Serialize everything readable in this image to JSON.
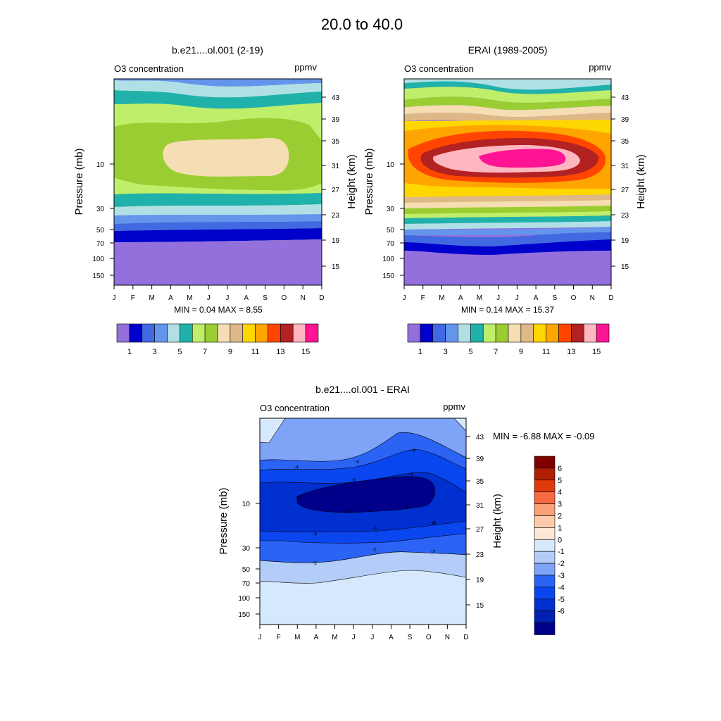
{
  "page_title": "20.0 to  40.0",
  "colors": {
    "conc_palette": [
      "#9370DB",
      "#0000CD",
      "#4169E1",
      "#6495ED",
      "#B0E0E6",
      "#20B2AA",
      "#BFEF6A",
      "#9ACD32",
      "#F5DEB3",
      "#DEB887",
      "#FFD700",
      "#FFA500",
      "#FF4500",
      "#B22222",
      "#FFB6C1",
      "#FF1493"
    ],
    "diff_palette": [
      "#00008B",
      "#0020B0",
      "#0030D0",
      "#0A46F0",
      "#2B63F5",
      "#7FA3F7",
      "#B3CDF8",
      "#D6E9FC",
      "#FCE6D6",
      "#FDCBAA",
      "#FBA178",
      "#F56A40",
      "#E03B0A",
      "#B02000",
      "#800000"
    ]
  },
  "chart_data": [
    {
      "id": "model",
      "type": "contour",
      "title": "b.e21....ol.001 (2-19)",
      "subtitle_left": "O3 concentration",
      "subtitle_right": "ppmv",
      "ylabel": "Pressure (mb)",
      "y2label": "Height (km)",
      "x": [
        "J",
        "F",
        "M",
        "A",
        "M",
        "J",
        "J",
        "A",
        "S",
        "O",
        "N",
        "D"
      ],
      "pressure_ticks": [
        "10",
        "30",
        "50",
        "70",
        "100",
        "150"
      ],
      "height_ticks": [
        "43",
        "39",
        "35",
        "31",
        "27",
        "23",
        "19",
        "15"
      ],
      "min_max": "MIN =   0.04  MAX =   8.55",
      "levels": [
        1,
        2,
        3,
        4,
        5,
        6,
        7,
        8,
        9
      ],
      "colorbar_labels": [
        "1",
        "3",
        "5",
        "7",
        "9",
        "11",
        "13",
        "15"
      ]
    },
    {
      "id": "obs",
      "type": "contour",
      "title": "ERAI (1989-2005)",
      "subtitle_left": "O3 concentration",
      "subtitle_right": "ppmv",
      "ylabel": "Pressure (mb)",
      "y2label": "Height (km)",
      "x": [
        "J",
        "F",
        "M",
        "A",
        "M",
        "J",
        "J",
        "A",
        "S",
        "O",
        "N",
        "D"
      ],
      "pressure_ticks": [
        "10",
        "30",
        "50",
        "70",
        "100",
        "150"
      ],
      "height_ticks": [
        "43",
        "39",
        "35",
        "31",
        "27",
        "23",
        "19",
        "15"
      ],
      "min_max": "MIN =   0.14  MAX =  15.37",
      "levels": [
        1,
        2,
        3,
        4,
        5,
        6,
        7,
        8,
        9,
        10,
        11,
        12,
        13,
        14,
        15
      ],
      "colorbar_labels": [
        "1",
        "3",
        "5",
        "7",
        "9",
        "11",
        "13",
        "15"
      ]
    },
    {
      "id": "diff",
      "type": "contour",
      "title": "b.e21....ol.001 - ERAI",
      "subtitle_left": "O3 concentration",
      "subtitle_right": "ppmv",
      "ylabel": "Pressure (mb)",
      "y2label": "Height (km)",
      "x": [
        "J",
        "F",
        "M",
        "A",
        "M",
        "J",
        "J",
        "A",
        "S",
        "O",
        "N",
        "D"
      ],
      "pressure_ticks": [
        "10",
        "30",
        "50",
        "70",
        "100",
        "150"
      ],
      "height_ticks": [
        "43",
        "39",
        "35",
        "31",
        "27",
        "23",
        "19",
        "15"
      ],
      "min_max": "MIN =  -6.88  MAX =  -0.09",
      "levels": [
        -6,
        -5,
        -4,
        -3,
        -2,
        -1,
        0,
        1,
        2,
        3,
        4,
        5,
        6
      ],
      "colorbar_labels": [
        "6",
        "5",
        "4",
        "3",
        "2",
        "1",
        "0",
        "-1",
        "-2",
        "-3",
        "-4",
        "-5",
        "-6"
      ],
      "contour_labels": [
        "-4",
        "-4",
        "-4",
        "-4",
        "-6",
        "-6",
        "-6",
        "-6",
        "-6",
        "-4",
        "-4",
        "-4",
        "-2",
        "-2",
        "-2"
      ]
    }
  ]
}
